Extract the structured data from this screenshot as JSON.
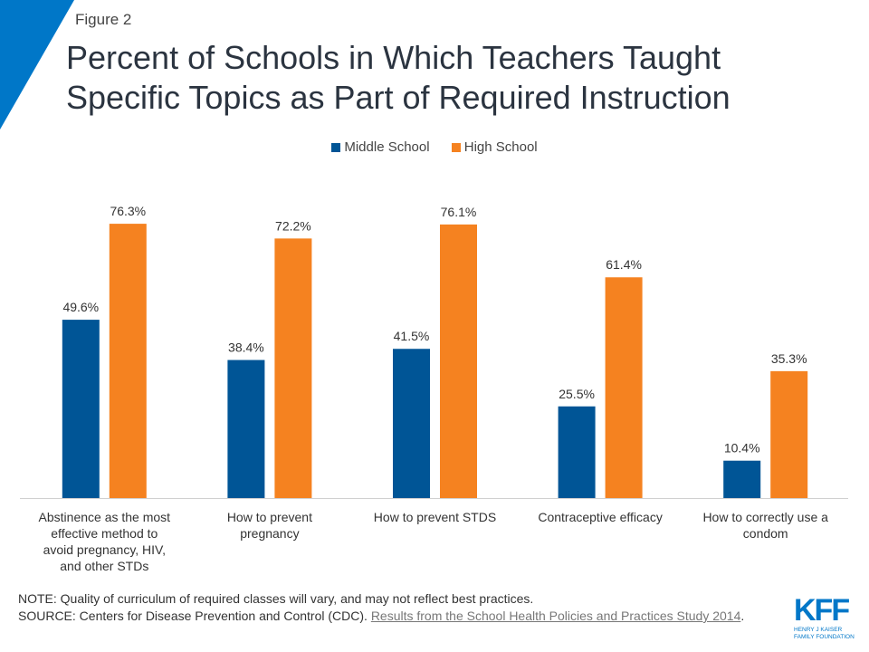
{
  "figure_label": "Figure 2",
  "title_line1": "Percent of Schools in Which Teachers Taught",
  "title_line2": "Specific Topics as Part of Required Instruction",
  "note": "NOTE: Quality of curriculum of required classes will vary, and may not reflect best practices.",
  "source_prefix": "SOURCE: Centers for Disease Prevention and Control (CDC). ",
  "source_link": "Results from the School Health Policies and Practices Study 2014",
  "source_suffix": ".",
  "logo": {
    "text": "KFF",
    "subtitle1": "HENRY J KAISER",
    "subtitle2": "FAMILY FOUNDATION"
  },
  "chart_data": {
    "type": "bar",
    "categories": [
      "Abstinence as the most effective method to avoid pregnancy, HIV, and other STDs",
      "How to prevent pregnancy",
      "How to prevent STDS",
      "Contraceptive efficacy",
      "How to correctly use a condom"
    ],
    "series": [
      {
        "name": "Middle School",
        "color": "#005596",
        "values": [
          49.6,
          38.4,
          41.5,
          25.5,
          10.4
        ]
      },
      {
        "name": "High School",
        "color": "#f58220",
        "values": [
          76.3,
          72.2,
          76.1,
          61.4,
          35.3
        ]
      }
    ],
    "ylim": [
      0,
      100
    ],
    "grid": false,
    "legend_position": "top",
    "value_format": "%"
  }
}
